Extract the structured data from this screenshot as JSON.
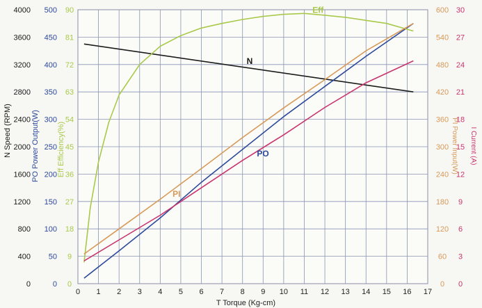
{
  "chart_data": {
    "type": "line",
    "title": "",
    "xlabel": "T  Torque (Kg-cm)",
    "xlim": [
      0,
      17
    ],
    "x_ticks": [
      "0",
      "1",
      "2",
      "3",
      "4",
      "5",
      "6",
      "7",
      "8",
      "9",
      "10",
      "11",
      "12",
      "13",
      "14",
      "15",
      "16",
      "17"
    ],
    "grid": true,
    "axes": {
      "N": {
        "label": "N   Speed (RPM)",
        "range": [
          0,
          4000
        ],
        "ticks": [
          "0",
          "400",
          "800",
          "1200",
          "1600",
          "2000",
          "2400",
          "2800",
          "3200",
          "3600",
          "4000"
        ],
        "color": "#1a1a1a"
      },
      "PO": {
        "label": "PO  Power Output(W)",
        "range": [
          0,
          500
        ],
        "ticks": [
          "0",
          "50",
          "100",
          "150",
          "200",
          "250",
          "300",
          "350",
          "400",
          "450",
          "500"
        ],
        "color": "#2d4a9a"
      },
      "Eff": {
        "label": "Eff  Efficiency(%)",
        "range": [
          0,
          90
        ],
        "ticks": [
          "0",
          "9",
          "18",
          "27",
          "36",
          "45",
          "54",
          "63",
          "72",
          "81",
          "90"
        ],
        "color": "#a9c94a"
      },
      "PI": {
        "label": "PI  Power Input(W)",
        "range": [
          0,
          600
        ],
        "ticks": [
          "0",
          "60",
          "120",
          "180",
          "240",
          "300",
          "360",
          "420",
          "480",
          "540",
          "600"
        ],
        "color": "#d89a58"
      },
      "I": {
        "label": "I   Current (A)",
        "range": [
          0,
          30
        ],
        "ticks": [
          "0",
          "3",
          "6",
          "9",
          "12",
          "15",
          "18",
          "21",
          "24",
          "27",
          "30"
        ],
        "color": "#c8356e"
      }
    },
    "series": [
      {
        "name": "N",
        "axis": "N",
        "color": "#1a1a1a",
        "x": [
          0.3,
          16.3
        ],
        "y": [
          3500,
          2800
        ]
      },
      {
        "name": "PO",
        "axis": "PO",
        "color": "#2d4a9a",
        "x": [
          0.3,
          2,
          4,
          6,
          8,
          10,
          12,
          14,
          16.3
        ],
        "y": [
          10,
          60,
          120,
          185,
          245,
          305,
          360,
          415,
          475
        ]
      },
      {
        "name": "Eff",
        "axis": "Eff",
        "color": "#a9c94a",
        "x": [
          0.3,
          0.6,
          1,
          1.5,
          2,
          3,
          4,
          5,
          6,
          7,
          8,
          9,
          10,
          11,
          12,
          13,
          14,
          15,
          16.3
        ],
        "y": [
          7,
          25,
          40,
          53,
          62,
          72,
          78,
          81.5,
          84,
          85.5,
          86.8,
          87.8,
          88.5,
          88.8,
          88.2,
          87.5,
          86.5,
          85.5,
          83
        ]
      },
      {
        "name": "PI",
        "axis": "PI",
        "color": "#d89a58",
        "x": [
          0.3,
          2,
          4,
          6,
          8,
          10,
          12,
          14,
          16.3
        ],
        "y": [
          65,
          120,
          185,
          252,
          320,
          385,
          447,
          510,
          570
        ]
      },
      {
        "name": "I",
        "axis": "I",
        "color": "#c8356e",
        "x": [
          0.3,
          2,
          4,
          6,
          8,
          10,
          12,
          14,
          16.3
        ],
        "y": [
          2.5,
          4.8,
          7.5,
          10.5,
          13.5,
          16.3,
          19.3,
          22.0,
          24.4
        ]
      }
    ],
    "annotations": [
      {
        "text": "N",
        "series": "N"
      },
      {
        "text": "PO",
        "series": "PO"
      },
      {
        "text": "Eff",
        "series": "Eff"
      },
      {
        "text": "PI",
        "series": "PI"
      }
    ]
  }
}
